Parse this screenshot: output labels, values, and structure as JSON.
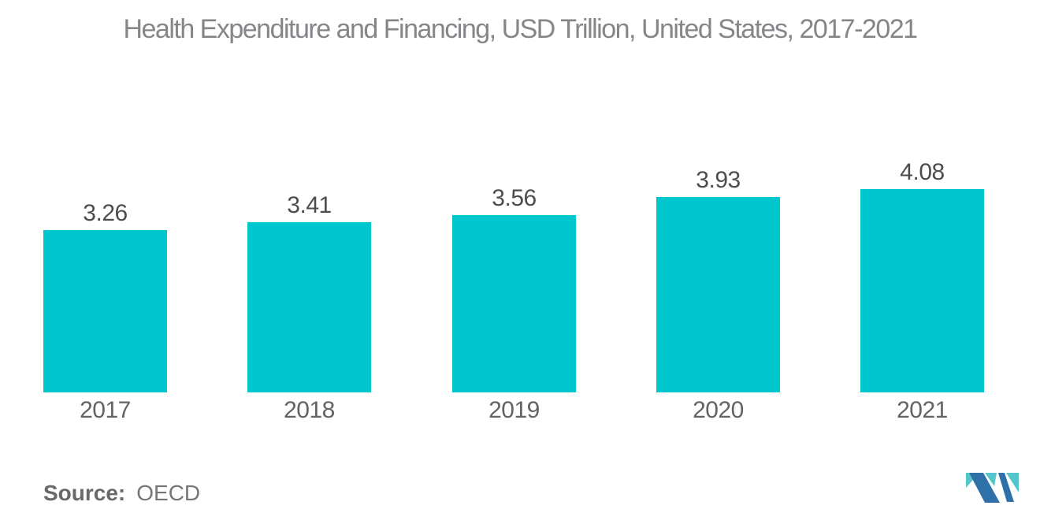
{
  "chart_data": {
    "type": "bar",
    "title": "Health Expenditure and Financing, USD Trillion, United States, 2017-2021",
    "categories": [
      "2017",
      "2018",
      "2019",
      "2020",
      "2021"
    ],
    "values": [
      3.26,
      3.41,
      3.56,
      3.93,
      4.08
    ],
    "value_labels": [
      "3.26",
      "3.41",
      "3.56",
      "3.93",
      "4.08"
    ],
    "xlabel": "",
    "ylabel": "",
    "ylim": [
      0,
      4.6
    ],
    "grid": false,
    "axes_visible": false,
    "data_labels": "above-bars",
    "legend": "none",
    "bar_color": "#00C7CE"
  },
  "footer": {
    "source_label": "Source:",
    "source_value": "OECD"
  },
  "branding": {
    "logo_name": "mordor-intelligence-logo"
  },
  "colors": {
    "background": "#FFFFFF",
    "bar": "#00C7CE",
    "title_text": "#85868A",
    "value_label_text": "#4D4D4F",
    "category_label_text": "#636366",
    "source_label_text": "#68696B",
    "source_value_text": "#757678",
    "logo_blue": "#2E71A8",
    "logo_teal": "#54C6CB"
  }
}
